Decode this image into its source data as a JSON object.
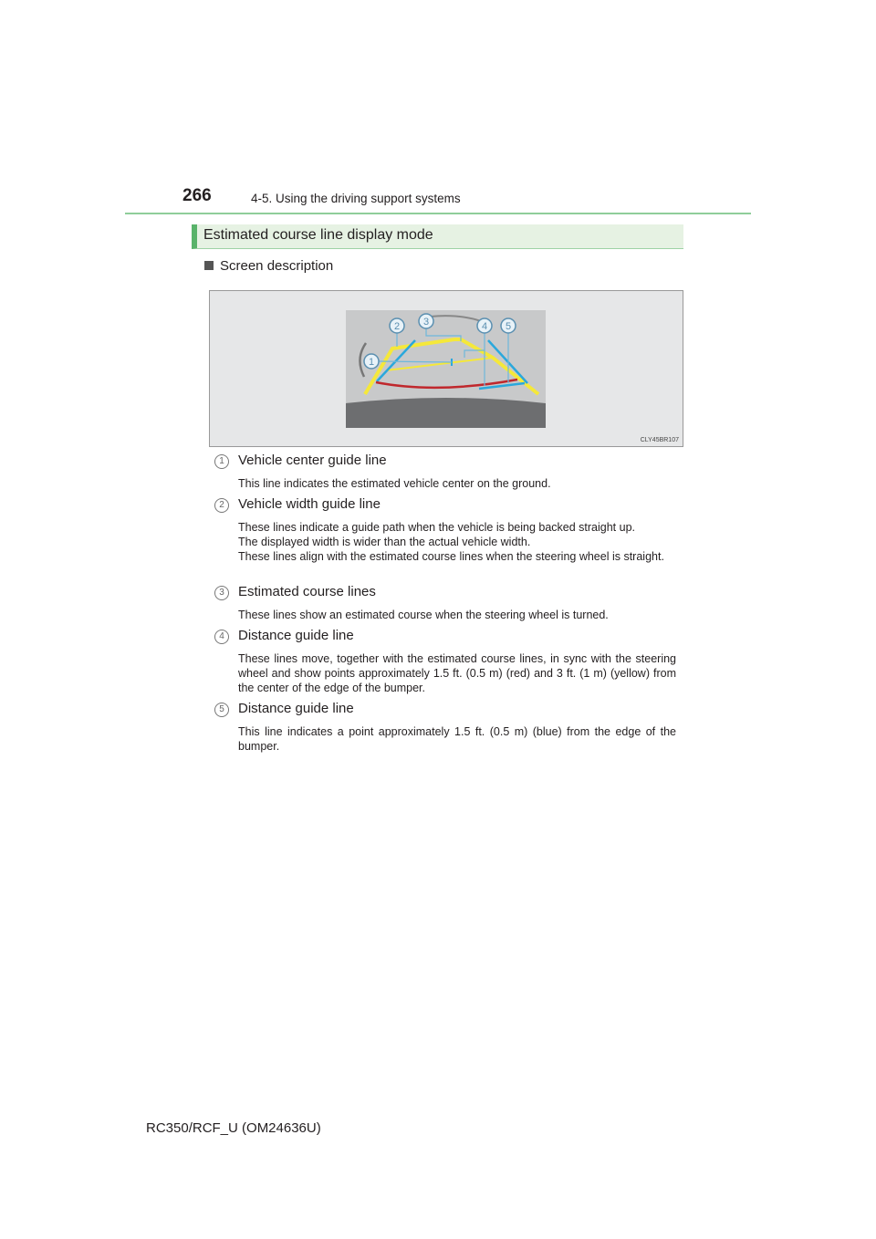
{
  "header": {
    "page_number": "266",
    "section": "4-5. Using the driving support systems"
  },
  "heading": "Estimated course line display mode",
  "subheading": "Screen description",
  "figure": {
    "code": "CLY45BR107",
    "callouts": [
      "1",
      "2",
      "3",
      "4",
      "5"
    ],
    "colors": {
      "yellow": "#f5e83a",
      "blue": "#2aa8dc",
      "red": "#c0282d",
      "screen": "#c8c9ca",
      "bumper": "#6d6e70"
    }
  },
  "items": [
    {
      "num": "1",
      "title": "Vehicle center guide line",
      "desc": "This line indicates the estimated vehicle center on the ground."
    },
    {
      "num": "2",
      "title": "Vehicle width guide line",
      "desc": "These lines indicate a guide path when the vehicle is being backed straight up.\nThe displayed width is wider than the actual vehicle width.\nThese lines align with the estimated course lines when the steering wheel is straight."
    },
    {
      "num": "3",
      "title": "Estimated course lines",
      "desc": "These lines show an estimated course when the steering wheel is turned."
    },
    {
      "num": "4",
      "title": "Distance guide line",
      "desc": "These lines move, together with the estimated course lines, in sync with the steering wheel and show points approximately 1.5 ft. (0.5 m) (red) and 3 ft. (1 m) (yellow) from the center of the edge of the bumper."
    },
    {
      "num": "5",
      "title": "Distance guide line",
      "desc": "This line indicates a point approximately 1.5 ft. (0.5 m) (blue) from the edge of the bumper."
    }
  ],
  "footer": "RC350/RCF_U (OM24636U)"
}
